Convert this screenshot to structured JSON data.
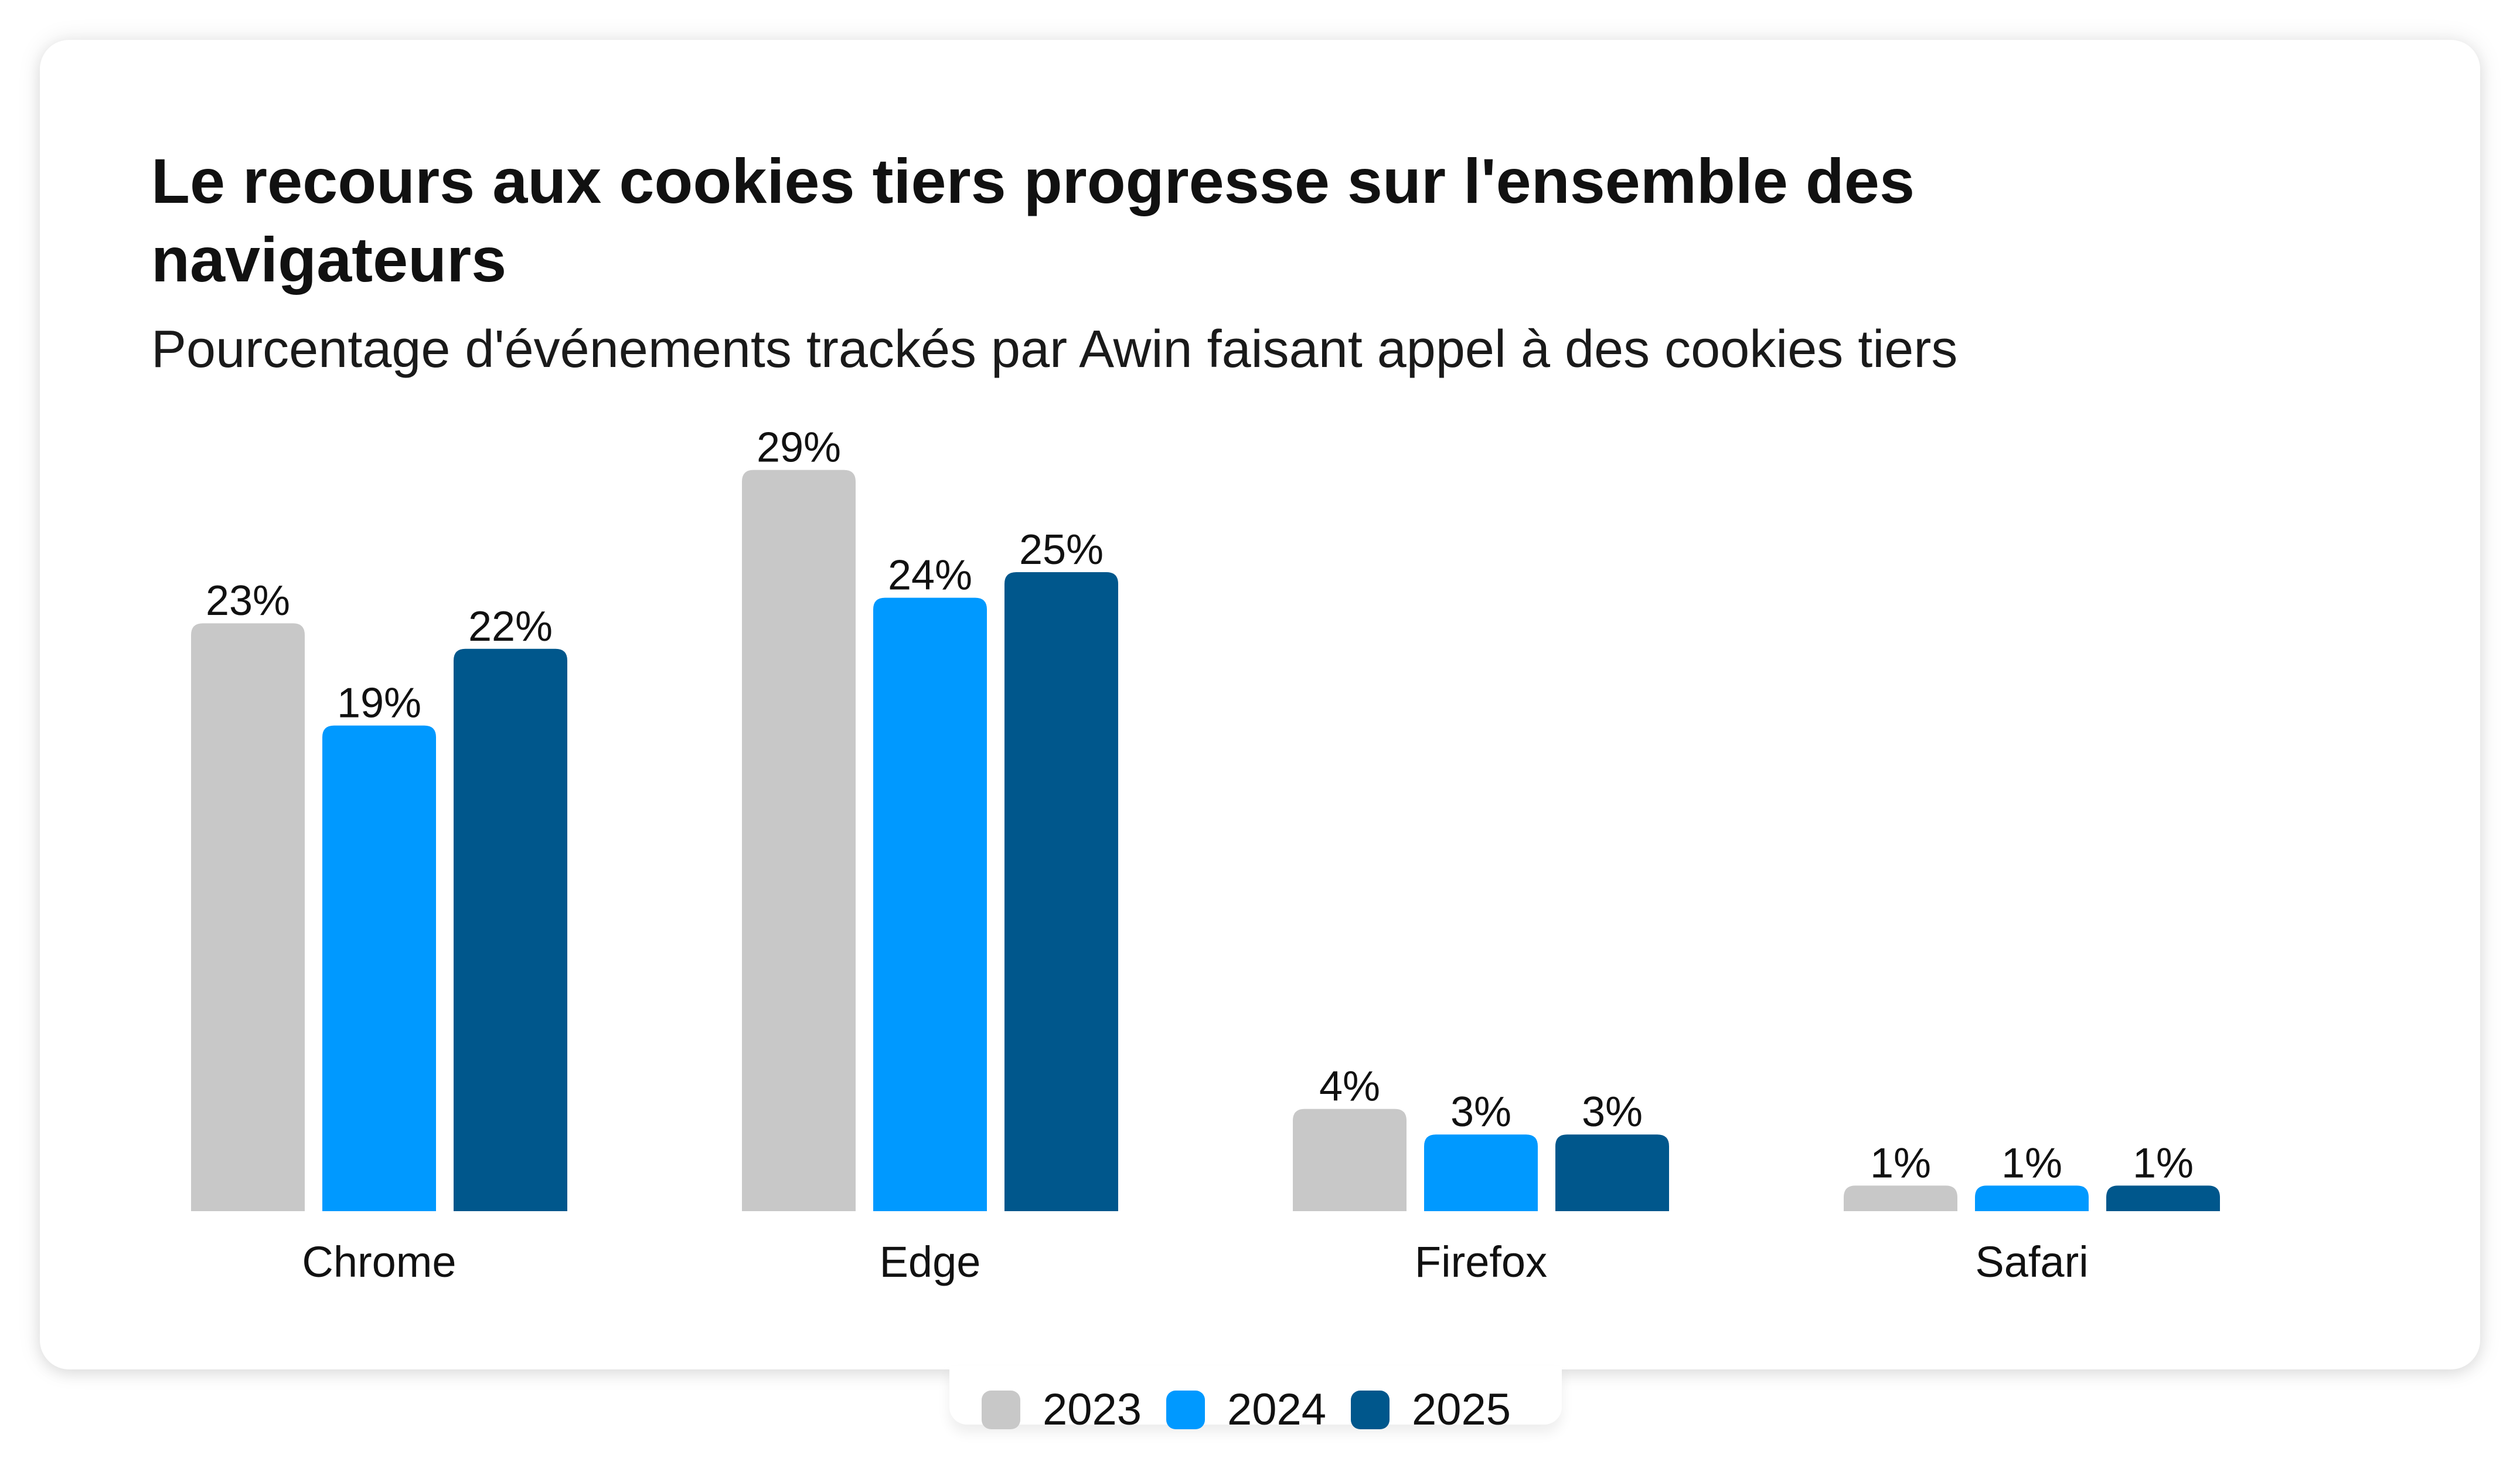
{
  "colors": {
    "2023": "#c8c8c8",
    "2024": "#0099ff",
    "2025": "#00578c",
    "text": "#111111"
  },
  "chart_data": {
    "type": "bar",
    "title": "Le recours aux cookies tiers progresse sur l'ensemble des navigateurs",
    "subtitle": "Pourcentage d'événements trackés par Awin faisant appel à des cookies tiers",
    "categories": [
      "Chrome",
      "Edge",
      "Firefox",
      "Safari"
    ],
    "series": [
      {
        "name": "2023",
        "values": [
          23,
          29,
          4,
          1
        ],
        "labels": [
          "23%",
          "29%",
          "4%",
          "1%"
        ]
      },
      {
        "name": "2024",
        "values": [
          19,
          24,
          3,
          1
        ],
        "labels": [
          "19%",
          "24%",
          "3%",
          "1%"
        ]
      },
      {
        "name": "2025",
        "values": [
          22,
          25,
          3,
          1
        ],
        "labels": [
          "22%",
          "25%",
          "3%",
          "1%"
        ]
      }
    ],
    "ylim": [
      0,
      30
    ],
    "grid": false,
    "legend_position": "bottom-center",
    "xlabel": "",
    "ylabel": ""
  }
}
